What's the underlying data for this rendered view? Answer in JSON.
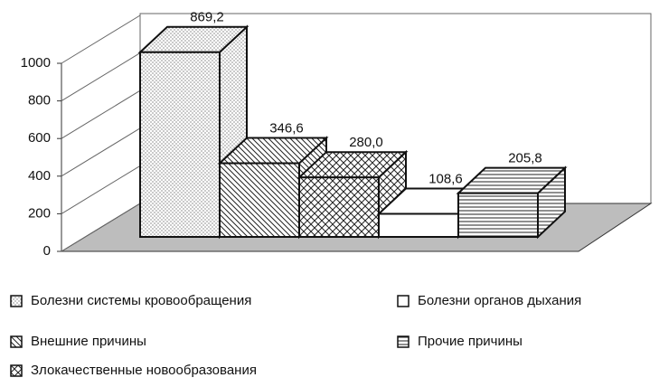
{
  "chart_data": {
    "type": "bar3d",
    "categories": [
      "Болезни системы кровообращения",
      "Внешние причины",
      "Злокачественные новообразования",
      "Болезни органов дыхания",
      "Прочие причины"
    ],
    "values": [
      869.2,
      346.6,
      280.0,
      108.6,
      205.8
    ],
    "value_labels": [
      "869,2",
      "346,6",
      "280,0",
      "108,6",
      "205,8"
    ],
    "patterns": [
      "dots",
      "diagonal",
      "crosshatch",
      "none",
      "horizontal"
    ],
    "ylim": [
      0,
      1000
    ],
    "yticks": [
      0,
      200,
      400,
      600,
      800,
      1000
    ],
    "floor_color": "#bdbdbd"
  }
}
